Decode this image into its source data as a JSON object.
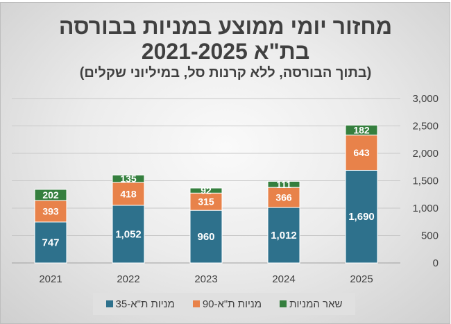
{
  "chart_data": {
    "type": "bar",
    "stacked": true,
    "title": "מחזור יומי ממוצע במניות בבורסה",
    "title_line2": "בת\"א 2021-2025",
    "subtitle": "(בתוך הבורסה, ללא קרנות סל, במיליוני שקלים)",
    "categories": [
      "2021",
      "2022",
      "2023",
      "2024",
      "2025"
    ],
    "series": [
      {
        "name": "מניות ת\"א-35",
        "color": "#2e718c",
        "values": [
          747,
          1052,
          960,
          1012,
          1690
        ]
      },
      {
        "name": "מניות ת\"א-90",
        "color": "#e8824a",
        "values": [
          393,
          418,
          315,
          366,
          643
        ]
      },
      {
        "name": "שאר המניות",
        "color": "#357f3e",
        "values": [
          202,
          135,
          92,
          111,
          182
        ]
      }
    ],
    "ylim": [
      0,
      3000
    ],
    "yticks": [
      0,
      500,
      1000,
      1500,
      2000,
      2500,
      3000
    ],
    "ytick_labels": [
      "0",
      "500",
      "1,000",
      "1,500",
      "2,000",
      "2,500",
      "3,000"
    ],
    "y_axis_side": "right",
    "grid": true,
    "legend": "bottom"
  }
}
